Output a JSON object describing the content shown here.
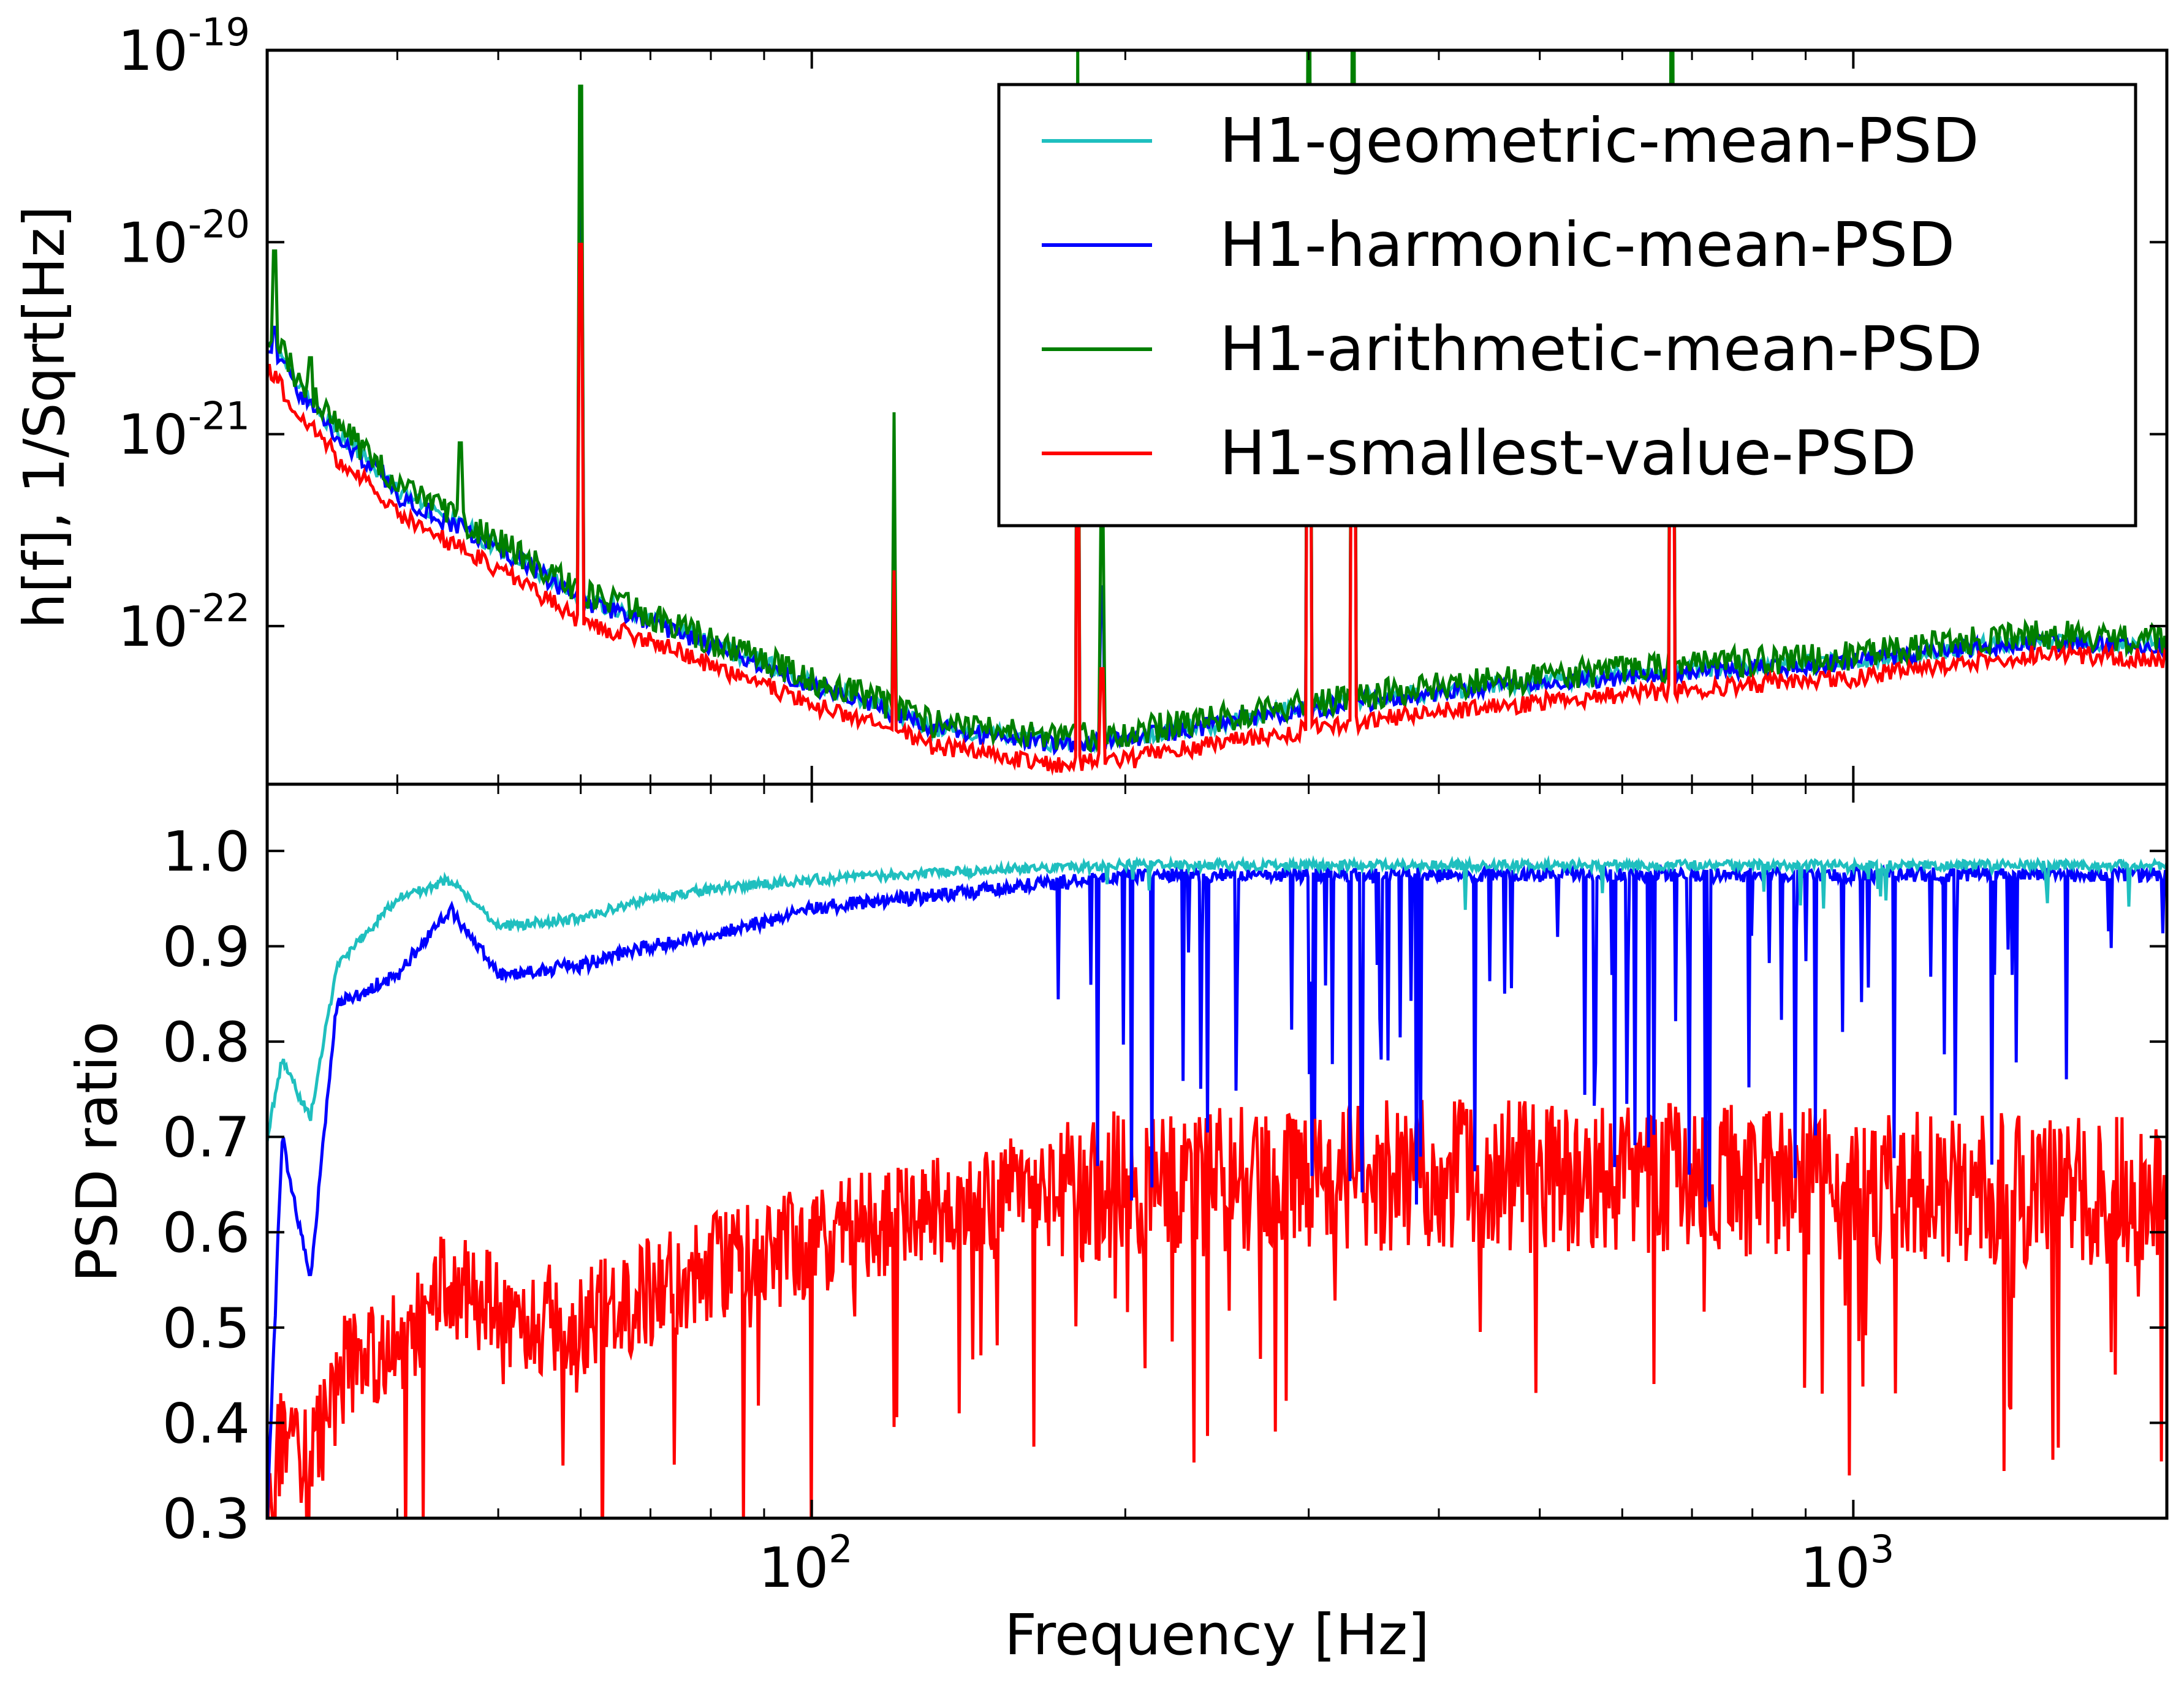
{
  "chart_data": [
    {
      "type": "line",
      "panel": "top",
      "xlabel": "",
      "ylabel": "h[f], 1/Sqrt[Hz]",
      "xscale": "log",
      "yscale": "log",
      "xlim": [
        30,
        2000
      ],
      "ylim": [
        1.5e-23,
        1e-19
      ],
      "y_ticks": [
        {
          "base": "10",
          "exp": "-22",
          "value": 1e-22
        },
        {
          "base": "10",
          "exp": "-21",
          "value": 1e-21
        },
        {
          "base": "10",
          "exp": "-20",
          "value": 1e-20
        },
        {
          "base": "10",
          "exp": "-19",
          "value": 1e-19
        }
      ],
      "legend": {
        "placement": "top-right",
        "entries": [
          {
            "label": "H1-geometric-mean-PSD",
            "color": "#1fbfbf"
          },
          {
            "label": "H1-harmonic-mean-PSD",
            "color": "#0000ff"
          },
          {
            "label": "H1-arithmetic-mean-PSD",
            "color": "#007f00"
          },
          {
            "label": "H1-smallest-value-PSD",
            "color": "#ff0000"
          }
        ]
      },
      "series": [
        {
          "name": "H1-geometric-mean-PSD",
          "color": "#1fbfbf",
          "x": [
            30,
            32,
            35,
            40,
            45,
            50,
            55,
            60,
            70,
            80,
            100,
            130,
            170,
            200,
            250,
            300,
            400,
            600,
            1000,
            1500,
            2000
          ],
          "y": [
            3.2e-21,
            1.8e-21,
            1e-21,
            5e-22,
            3.5e-22,
            2.6e-22,
            1.9e-22,
            1.4e-22,
            1.1e-22,
            8e-23,
            5e-23,
            3e-23,
            2.5e-23,
            2.6e-23,
            3.2e-23,
            3.8e-23,
            4.6e-23,
            5.6e-23,
            6.6e-23,
            8.5e-23,
            8e-23
          ]
        },
        {
          "name": "H1-harmonic-mean-PSD",
          "color": "#0000ff",
          "x": [
            30,
            32,
            35,
            40,
            45,
            50,
            55,
            60,
            70,
            80,
            100,
            130,
            170,
            200,
            250,
            300,
            400,
            600,
            1000,
            1500,
            2000
          ],
          "y": [
            3e-21,
            1.7e-21,
            9.5e-22,
            4.8e-22,
            3.4e-22,
            2.5e-22,
            1.85e-22,
            1.35e-22,
            1.05e-22,
            7.8e-23,
            4.9e-23,
            2.95e-23,
            2.45e-23,
            2.55e-23,
            3.15e-23,
            3.7e-23,
            4.5e-23,
            5.5e-23,
            6.5e-23,
            8.3e-23,
            7.8e-23
          ]
        },
        {
          "name": "H1-arithmetic-mean-PSD",
          "color": "#007f00",
          "x": [
            30,
            32,
            35,
            40,
            45,
            50,
            55,
            60,
            70,
            80,
            100,
            130,
            170,
            200,
            250,
            300,
            400,
            600,
            1000,
            1500,
            2000
          ],
          "y": [
            3.6e-21,
            2e-21,
            1.1e-21,
            5.4e-22,
            3.8e-22,
            2.8e-22,
            2e-22,
            1.5e-22,
            1.15e-22,
            8.5e-23,
            5.3e-23,
            3.2e-23,
            2.6e-23,
            2.8e-23,
            3.4e-23,
            4e-23,
            4.9e-23,
            6e-23,
            7.1e-23,
            9.2e-23,
            8.6e-23
          ]
        },
        {
          "name": "H1-smallest-value-PSD",
          "color": "#ff0000",
          "x": [
            30,
            32,
            35,
            40,
            45,
            50,
            55,
            60,
            70,
            80,
            100,
            130,
            170,
            200,
            250,
            300,
            400,
            600,
            1000,
            1500,
            2000
          ],
          "y": [
            2.2e-21,
            1.3e-21,
            7.5e-22,
            3.8e-22,
            2.7e-22,
            2e-22,
            1.45e-22,
            1.05e-22,
            8.5e-23,
            6.2e-23,
            3.9e-23,
            2.4e-23,
            1.9e-23,
            2e-23,
            2.5e-23,
            2.9e-23,
            3.6e-23,
            4.4e-23,
            5.4e-23,
            7.2e-23,
            6.8e-23
          ]
        }
      ],
      "spectral_lines": [
        {
          "freq": 30.5,
          "value": 9e-21
        },
        {
          "freq": 33,
          "value": 2.5e-21
        },
        {
          "freq": 46,
          "value": 9e-22
        },
        {
          "freq": 60,
          "value": 6.5e-20
        },
        {
          "freq": 120,
          "value": 1.3e-21
        },
        {
          "freq": 180,
          "value": 1e-19
        },
        {
          "freq": 190,
          "value": 4e-22
        },
        {
          "freq": 300,
          "value": 1e-19
        },
        {
          "freq": 331,
          "value": 1e-19
        },
        {
          "freq": 670,
          "value": 1e-19
        }
      ]
    },
    {
      "type": "line",
      "panel": "bottom",
      "xlabel": "Frequency [Hz]",
      "ylabel": "PSD ratio",
      "xscale": "log",
      "xlim": [
        30,
        2000
      ],
      "ylim": [
        0.3,
        1.07
      ],
      "x_ticks": [
        {
          "base": "10",
          "exp": "2",
          "value": 100
        },
        {
          "base": "10",
          "exp": "3",
          "value": 1000
        }
      ],
      "y_ticks": [
        "0.3",
        "0.4",
        "0.5",
        "0.6",
        "0.7",
        "0.8",
        "0.9",
        "1.0"
      ],
      "series": [
        {
          "color": "#1fbfbf",
          "x": [
            30,
            31,
            33,
            35,
            40,
            45,
            50,
            60,
            70,
            80,
            100,
            150,
            200,
            300,
            500,
            1000,
            2000
          ],
          "y": [
            0.7,
            0.78,
            0.72,
            0.88,
            0.95,
            0.97,
            0.92,
            0.93,
            0.95,
            0.96,
            0.97,
            0.98,
            0.985,
            0.985,
            0.985,
            0.985,
            0.985
          ]
        },
        {
          "color": "#0000ff",
          "x": [
            30,
            31,
            33,
            35,
            40,
            45,
            50,
            60,
            70,
            80,
            100,
            150,
            200,
            300,
            500,
            1000,
            2000
          ],
          "y": [
            0.3,
            0.7,
            0.55,
            0.84,
            0.87,
            0.94,
            0.87,
            0.88,
            0.9,
            0.91,
            0.94,
            0.96,
            0.975,
            0.975,
            0.975,
            0.975,
            0.975
          ]
        },
        {
          "color": "#ff0000",
          "x": [
            30,
            31,
            33,
            35,
            40,
            45,
            50,
            60,
            70,
            80,
            100,
            150,
            200,
            300,
            500,
            1000,
            2000
          ],
          "y": [
            0.32,
            0.38,
            0.35,
            0.45,
            0.48,
            0.55,
            0.52,
            0.5,
            0.54,
            0.56,
            0.59,
            0.64,
            0.65,
            0.66,
            0.66,
            0.65,
            0.64
          ]
        }
      ]
    }
  ]
}
